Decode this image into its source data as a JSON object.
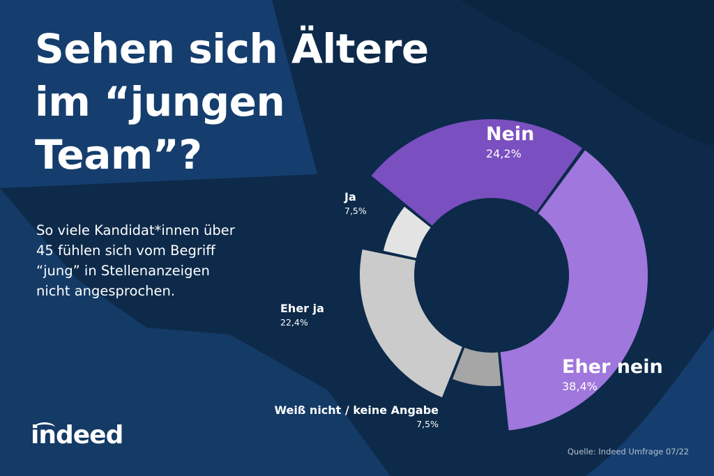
{
  "title_lines": [
    "Sehen sich Ältere",
    "im “jungen",
    "Team”?"
  ],
  "subtitle_lines": [
    "So viele Kandidat*innen über",
    "45 fühlen sich vom Begriff",
    "“jung” in Stellenanzeigen",
    "nicht angesprochen."
  ],
  "logo_text": "indeed",
  "source_text": "Quelle: Indeed Umfrage 07/22",
  "colors": {
    "background": "#0d2a4a",
    "panel": "#153e6e",
    "deep": "#0b2440",
    "nein": "#7a4fc0",
    "eher_nein": "#a077dc",
    "weiss_nicht": "#a6a6a6",
    "eher_ja": "#cbcbcb",
    "ja": "#e3e3e3"
  },
  "chart_data": {
    "type": "pie",
    "variant": "exploded-donut",
    "title": "Sehen sich Ältere im “jungen Team”?",
    "slices": [
      {
        "key": "nein",
        "label": "Nein",
        "value": 24.2,
        "value_label": "24,2%"
      },
      {
        "key": "eher_nein",
        "label": "Eher nein",
        "value": 38.4,
        "value_label": "38,4%"
      },
      {
        "key": "weiss_nicht",
        "label": "Weiß nicht / keine Angabe",
        "value": 7.5,
        "value_label": "7,5%"
      },
      {
        "key": "eher_ja",
        "label": "Eher ja",
        "value": 22.4,
        "value_label": "22,4%"
      },
      {
        "key": "ja",
        "label": "Ja",
        "value": 7.5,
        "value_label": "7,5%"
      }
    ]
  }
}
